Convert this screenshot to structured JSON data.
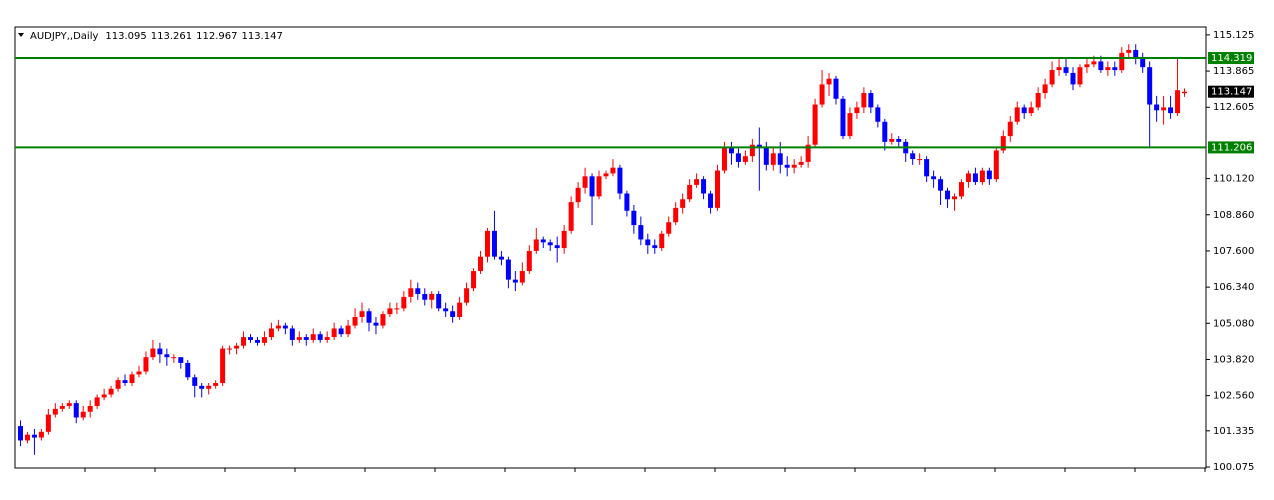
{
  "chart_data": {
    "type": "candlestick",
    "title": "AUDJPY,,Daily",
    "up_color": "#ff0000",
    "down_color": "#0000ff",
    "ylim": [
      100.04,
      115.4
    ],
    "yticks": [
      115.125,
      113.865,
      112.605,
      {
        "value": 110.12,
        "label": "110.120"
      },
      {
        "value": 108.86,
        "label": "108.860"
      },
      {
        "value": 107.6,
        "label": "107.600"
      },
      {
        "value": 106.34,
        "label": "106.340"
      },
      {
        "value": 105.08,
        "label": "105.080"
      },
      {
        "value": 103.82,
        "label": "103.820"
      },
      {
        "value": 102.56,
        "label": "102.560"
      },
      101.335,
      100.075
    ],
    "levels": {
      "values": [
        114.319,
        111.206
      ],
      "color": "#008000"
    },
    "open": [
      101.5,
      101.0,
      101.2,
      101.1,
      101.3,
      101.9,
      102.1,
      102.2,
      102.3,
      101.8,
      102.0,
      102.2,
      102.5,
      102.6,
      102.8,
      103.1,
      103.0,
      103.3,
      103.4,
      103.9,
      104.2,
      104.0,
      103.9,
      103.9,
      103.7,
      103.2,
      102.9,
      102.8,
      102.9,
      103.0,
      104.2,
      104.2,
      104.3,
      104.6,
      104.5,
      104.4,
      104.6,
      104.9,
      105.0,
      104.9,
      104.5,
      104.6,
      104.5,
      104.7,
      104.5,
      104.6,
      104.9,
      104.7,
      105.0,
      105.3,
      105.5,
      105.1,
      105.0,
      105.4,
      105.6,
      105.6,
      106.0,
      106.3,
      106.1,
      105.9,
      106.1,
      105.6,
      105.5,
      105.3,
      105.8,
      106.3,
      106.9,
      107.4,
      108.3,
      107.4,
      107.3,
      106.6,
      106.5,
      106.9,
      107.6,
      108.0,
      107.9,
      107.8,
      107.7,
      108.3,
      109.3,
      109.8,
      110.2,
      109.5,
      110.2,
      110.3,
      110.5,
      109.6,
      109.0,
      108.5,
      108.0,
      107.8,
      107.7,
      108.2,
      108.6,
      109.1,
      109.4,
      109.9,
      110.1,
      109.6,
      109.1,
      110.4,
      111.2,
      111.0,
      110.7,
      110.9,
      111.3,
      111.2,
      110.6,
      111.0,
      110.6,
      110.5,
      110.6,
      110.7,
      111.3,
      112.7,
      113.4,
      113.6,
      112.9,
      111.6,
      112.4,
      112.6,
      113.1,
      112.6,
      112.1,
      111.4,
      111.5,
      111.4,
      111.0,
      110.8,
      110.8,
      110.2,
      110.1,
      109.7,
      109.4,
      109.5,
      110.0,
      110.3,
      110.0,
      110.4,
      110.1,
      111.1,
      111.6,
      112.1,
      112.6,
      112.4,
      112.6,
      113.1,
      113.4,
      113.9,
      114.0,
      113.8,
      113.4,
      114.0,
      114.1,
      114.2,
      113.9,
      114.0,
      113.9,
      114.5,
      114.6,
      114.3,
      114.0,
      112.7,
      112.5,
      112.6,
      112.4,
      113.095
    ],
    "high": [
      101.7,
      101.3,
      101.4,
      101.4,
      102.1,
      102.3,
      102.3,
      102.4,
      102.4,
      102.2,
      102.4,
      102.6,
      102.8,
      102.9,
      103.2,
      103.3,
      103.4,
      103.6,
      104.1,
      104.5,
      104.4,
      104.2,
      104.0,
      103.9,
      103.8,
      103.3,
      103.0,
      103.0,
      103.1,
      104.3,
      104.3,
      104.4,
      104.8,
      104.7,
      104.6,
      104.8,
      105.1,
      105.2,
      105.1,
      105.0,
      104.8,
      104.7,
      104.9,
      104.8,
      104.8,
      105.1,
      105.0,
      105.2,
      105.6,
      105.8,
      105.6,
      105.3,
      105.5,
      105.8,
      105.8,
      106.2,
      106.6,
      106.5,
      106.3,
      106.2,
      106.2,
      105.8,
      105.7,
      106.0,
      106.5,
      107.0,
      107.6,
      108.4,
      109.0,
      107.6,
      107.4,
      106.9,
      107.2,
      107.8,
      108.4,
      108.1,
      108.0,
      108.1,
      108.5,
      109.5,
      110.0,
      110.5,
      110.3,
      110.4,
      110.4,
      110.8,
      110.6,
      109.7,
      109.2,
      108.8,
      108.2,
      108.0,
      108.3,
      108.8,
      109.3,
      109.6,
      110.1,
      110.3,
      110.2,
      109.7,
      110.6,
      111.4,
      111.4,
      111.2,
      111.1,
      111.5,
      111.9,
      111.4,
      111.2,
      111.4,
      110.9,
      110.8,
      110.9,
      111.6,
      112.9,
      113.9,
      113.8,
      113.7,
      113.0,
      112.6,
      112.8,
      113.3,
      113.2,
      112.7,
      112.2,
      111.7,
      111.6,
      111.5,
      111.1,
      111.0,
      110.9,
      110.4,
      110.2,
      109.8,
      109.6,
      110.1,
      110.4,
      110.5,
      110.5,
      110.5,
      111.2,
      111.8,
      112.3,
      112.8,
      112.7,
      112.8,
      113.3,
      113.6,
      114.2,
      114.3,
      114.3,
      114.0,
      114.1,
      114.3,
      114.4,
      114.4,
      114.2,
      114.2,
      114.7,
      114.8,
      114.8,
      114.5,
      114.2,
      113.0,
      113.0,
      113.0,
      114.3,
      113.261
    ],
    "low": [
      100.8,
      100.9,
      100.5,
      101.0,
      101.2,
      101.8,
      102.0,
      102.1,
      101.6,
      101.7,
      101.8,
      102.1,
      102.4,
      102.5,
      102.7,
      102.9,
      102.9,
      103.2,
      103.3,
      103.8,
      103.7,
      103.6,
      103.7,
      103.5,
      103.1,
      102.5,
      102.5,
      102.6,
      102.8,
      102.9,
      104.0,
      104.0,
      104.2,
      104.4,
      104.3,
      104.3,
      104.5,
      104.8,
      104.7,
      104.3,
      104.4,
      104.3,
      104.4,
      104.4,
      104.4,
      104.5,
      104.6,
      104.6,
      104.9,
      105.1,
      104.8,
      104.7,
      104.9,
      105.3,
      105.4,
      105.5,
      105.8,
      105.9,
      105.7,
      105.6,
      105.5,
      105.3,
      105.1,
      105.2,
      105.7,
      106.2,
      106.8,
      107.2,
      107.3,
      107.1,
      106.3,
      106.2,
      106.4,
      106.8,
      107.5,
      107.7,
      107.6,
      107.2,
      107.5,
      108.2,
      109.1,
      109.6,
      108.5,
      109.4,
      110.1,
      110.2,
      109.4,
      108.8,
      108.2,
      107.8,
      107.5,
      107.5,
      107.6,
      108.1,
      108.5,
      108.9,
      109.3,
      109.8,
      109.4,
      108.9,
      109.0,
      110.3,
      110.6,
      110.5,
      110.6,
      110.7,
      109.7,
      110.4,
      110.4,
      110.3,
      110.2,
      110.3,
      110.5,
      110.5,
      111.2,
      112.6,
      113.0,
      112.7,
      111.5,
      111.5,
      112.2,
      112.4,
      112.4,
      111.9,
      111.1,
      111.3,
      111.2,
      110.7,
      110.6,
      110.6,
      110.0,
      109.8,
      109.2,
      109.1,
      109.0,
      109.4,
      109.8,
      109.9,
      109.9,
      109.9,
      110.0,
      111.0,
      111.4,
      112.0,
      112.2,
      112.3,
      112.5,
      112.9,
      113.3,
      113.7,
      113.7,
      113.2,
      113.3,
      113.8,
      114.0,
      113.8,
      113.7,
      113.7,
      113.8,
      114.3,
      114.1,
      113.8,
      111.2,
      112.1,
      112.0,
      112.2,
      112.3,
      112.967
    ],
    "close": [
      101.0,
      101.2,
      101.1,
      101.3,
      101.9,
      102.1,
      102.2,
      102.3,
      101.8,
      102.0,
      102.2,
      102.5,
      102.6,
      102.8,
      103.1,
      103.0,
      103.3,
      103.4,
      103.9,
      104.2,
      104.0,
      103.9,
      103.9,
      103.7,
      103.2,
      102.9,
      102.8,
      102.9,
      103.0,
      104.2,
      104.2,
      104.3,
      104.6,
      104.5,
      104.4,
      104.6,
      104.9,
      105.0,
      104.9,
      104.5,
      104.6,
      104.5,
      104.7,
      104.5,
      104.6,
      104.9,
      104.7,
      105.0,
      105.3,
      105.5,
      105.1,
      105.0,
      105.4,
      105.6,
      105.6,
      106.0,
      106.3,
      106.1,
      105.9,
      106.1,
      105.6,
      105.5,
      105.3,
      105.8,
      106.3,
      106.9,
      107.4,
      108.3,
      107.4,
      107.3,
      106.6,
      106.5,
      106.9,
      107.6,
      108.0,
      107.9,
      107.8,
      107.7,
      108.3,
      109.3,
      109.8,
      110.2,
      109.5,
      110.2,
      110.3,
      110.5,
      109.6,
      109.0,
      108.5,
      108.0,
      107.8,
      107.7,
      108.2,
      108.6,
      109.1,
      109.4,
      109.9,
      110.1,
      109.6,
      109.1,
      110.4,
      111.2,
      111.0,
      110.7,
      110.9,
      111.3,
      111.2,
      110.6,
      111.0,
      110.6,
      110.5,
      110.6,
      110.7,
      111.3,
      112.7,
      113.4,
      113.6,
      112.9,
      111.6,
      112.4,
      112.6,
      113.1,
      112.6,
      112.1,
      111.4,
      111.5,
      111.4,
      111.0,
      110.8,
      110.8,
      110.2,
      110.1,
      109.7,
      109.4,
      109.5,
      110.0,
      110.3,
      110.0,
      110.4,
      110.1,
      111.1,
      111.6,
      112.1,
      112.6,
      112.4,
      112.6,
      113.1,
      113.4,
      113.9,
      114.0,
      113.8,
      113.4,
      114.0,
      114.1,
      114.2,
      113.9,
      114.0,
      113.9,
      114.5,
      114.6,
      114.3,
      114.0,
      112.7,
      112.5,
      112.6,
      112.4,
      113.2,
      113.147
    ]
  }
}
